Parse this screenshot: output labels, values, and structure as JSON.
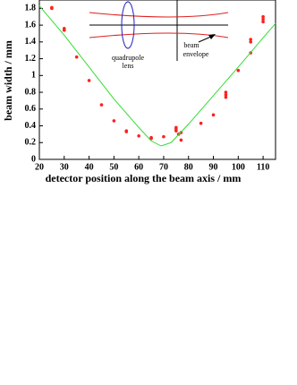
{
  "chart_data": {
    "type": "scatter",
    "x_label": "detector position along the beam axis / mm",
    "y_label": "beam width / mm",
    "xlim": [
      20,
      115
    ],
    "ylim": [
      0,
      1.9
    ],
    "xticks": [
      20,
      30,
      40,
      50,
      60,
      70,
      80,
      90,
      100,
      110
    ],
    "yticks": [
      0,
      0.2,
      0.4,
      0.6,
      0.8,
      1,
      1.2,
      1.4,
      1.6,
      1.8
    ],
    "annotations": [
      [
        "quadrupole",
        "lens"
      ],
      [
        "beam",
        "envelope"
      ]
    ],
    "series": [
      {
        "type": "scatter",
        "color": "#ff2020",
        "x": [
          25,
          25,
          30,
          30,
          35,
          40,
          45,
          50,
          55,
          55,
          60,
          65,
          65,
          70,
          75,
          75,
          75,
          76,
          77,
          77,
          85,
          90,
          95,
          95,
          95,
          100,
          105,
          105,
          105,
          110,
          110,
          110
        ],
        "values": [
          1.81,
          1.8,
          1.56,
          1.54,
          1.22,
          0.94,
          0.65,
          0.46,
          0.34,
          0.33,
          0.28,
          0.26,
          0.25,
          0.27,
          0.38,
          0.36,
          0.34,
          0.3,
          0.23,
          0.32,
          0.43,
          0.53,
          0.8,
          0.77,
          0.74,
          1.06,
          1.43,
          1.4,
          1.27,
          1.7,
          1.67,
          1.64
        ]
      },
      {
        "type": "line",
        "color": "#33dd33",
        "x": [
          20,
          30,
          40,
          50,
          60,
          65,
          69,
          73,
          80,
          90,
          100,
          110,
          115
        ],
        "values": [
          1.83,
          1.48,
          1.1,
          0.72,
          0.38,
          0.22,
          0.16,
          0.2,
          0.42,
          0.76,
          1.1,
          1.45,
          1.62
        ]
      }
    ]
  }
}
